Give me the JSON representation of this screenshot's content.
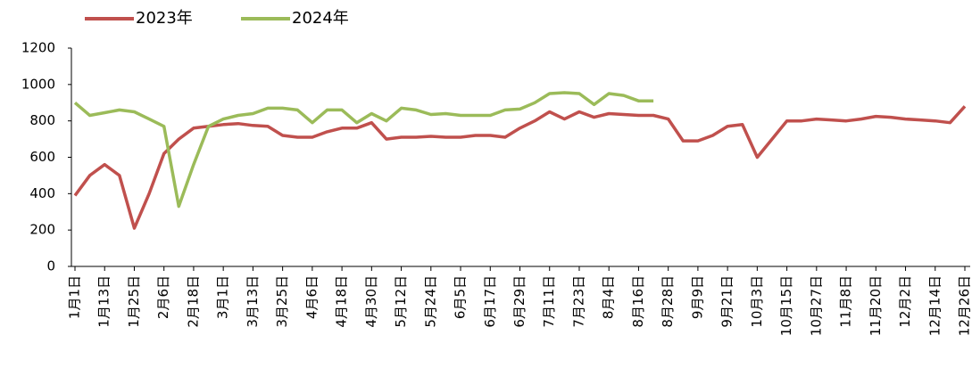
{
  "chart_data": {
    "type": "line",
    "categories": [
      "1月1日",
      null,
      "1月13日",
      null,
      "1月25日",
      null,
      "2月6日",
      null,
      "2月18日",
      null,
      "3月1日",
      null,
      "3月13日",
      null,
      "3月25日",
      null,
      "4月6日",
      null,
      "4月18日",
      null,
      "4月30日",
      null,
      "5月12日",
      null,
      "5月24日",
      null,
      "6月5日",
      null,
      "6月17日",
      null,
      "6月29日",
      null,
      "7月11日",
      null,
      "7月23日",
      null,
      "8月4日",
      null,
      "8月16日",
      null,
      "8月28日",
      null,
      "9月9日",
      null,
      "9月21日",
      null,
      "10月3日",
      null,
      "10月15日",
      null,
      "10月27日",
      null,
      "11月8日",
      null,
      "11月20日",
      null,
      "12月2日",
      null,
      "12月14日",
      null,
      "12月26日"
    ],
    "series": [
      {
        "name": "2023年",
        "color": "#c0504d",
        "values": [
          390,
          500,
          560,
          500,
          210,
          400,
          620,
          700,
          760,
          770,
          780,
          785,
          775,
          770,
          720,
          710,
          710,
          740,
          760,
          760,
          790,
          700,
          710,
          710,
          715,
          710,
          710,
          720,
          720,
          710,
          760,
          800,
          850,
          810,
          850,
          820,
          840,
          835,
          830,
          830,
          810,
          690,
          690,
          720,
          770,
          780,
          600,
          700,
          800,
          800,
          810,
          805,
          800,
          810,
          825,
          820,
          810,
          805,
          800,
          790,
          880
        ]
      },
      {
        "name": "2024年",
        "color": "#9bbb59",
        "values": [
          900,
          830,
          845,
          860,
          850,
          810,
          770,
          330,
          560,
          770,
          810,
          830,
          840,
          870,
          870,
          860,
          790,
          860,
          860,
          790,
          840,
          800,
          870,
          860,
          835,
          840,
          830,
          830,
          830,
          860,
          865,
          900,
          950,
          955,
          950,
          890,
          950,
          940,
          910,
          910,
          null,
          null,
          null,
          null,
          null,
          null,
          null,
          null,
          null,
          null,
          null,
          null,
          null,
          null,
          null,
          null,
          null,
          null,
          null,
          null,
          null
        ]
      }
    ],
    "ylim": [
      0,
      1200
    ],
    "yticks": [
      0,
      200,
      400,
      600,
      800,
      1000,
      1200
    ],
    "grid": false,
    "legend": "top-left"
  }
}
